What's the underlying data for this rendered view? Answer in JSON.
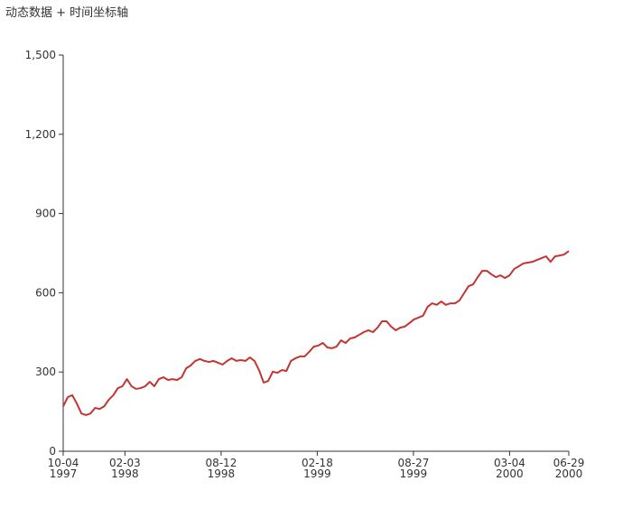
{
  "chart_data": {
    "type": "line",
    "title": "动态数据 + 时间坐标轴",
    "x": [
      "1997-10-04",
      "1997-10-13",
      "1997-10-22",
      "1997-10-31",
      "1997-11-09",
      "1997-11-18",
      "1997-11-27",
      "1997-12-06",
      "1997-12-15",
      "1997-12-24",
      "1998-01-02",
      "1998-01-11",
      "1998-01-20",
      "1998-01-29",
      "1998-02-07",
      "1998-02-16",
      "1998-02-25",
      "1998-03-06",
      "1998-03-15",
      "1998-03-24",
      "1998-04-02",
      "1998-04-11",
      "1998-04-20",
      "1998-04-29",
      "1998-05-08",
      "1998-05-17",
      "1998-05-26",
      "1998-06-04",
      "1998-06-13",
      "1998-06-22",
      "1998-07-01",
      "1998-07-10",
      "1998-07-19",
      "1998-07-28",
      "1998-08-06",
      "1998-08-15",
      "1998-08-24",
      "1998-09-02",
      "1998-09-11",
      "1998-09-20",
      "1998-09-29",
      "1998-10-08",
      "1998-10-17",
      "1998-10-26",
      "1998-11-04",
      "1998-11-13",
      "1998-11-22",
      "1998-12-01",
      "1998-12-10",
      "1998-12-19",
      "1998-12-28",
      "1999-01-06",
      "1999-01-15",
      "1999-01-24",
      "1999-02-02",
      "1999-02-11",
      "1999-02-20",
      "1999-03-01",
      "1999-03-10",
      "1999-03-19",
      "1999-03-28",
      "1999-04-06",
      "1999-04-15",
      "1999-04-24",
      "1999-05-03",
      "1999-05-12",
      "1999-05-21",
      "1999-05-30",
      "1999-06-08",
      "1999-06-17",
      "1999-06-26",
      "1999-07-05",
      "1999-07-14",
      "1999-07-23",
      "1999-08-01",
      "1999-08-10",
      "1999-08-19",
      "1999-08-28",
      "1999-09-06",
      "1999-09-15",
      "1999-09-24",
      "1999-10-03",
      "1999-10-12",
      "1999-10-21",
      "1999-10-30",
      "1999-11-08",
      "1999-11-17",
      "1999-11-26",
      "1999-12-05",
      "1999-12-14",
      "1999-12-23",
      "2000-01-01",
      "2000-01-10",
      "2000-01-19",
      "2000-01-28",
      "2000-02-06",
      "2000-02-15",
      "2000-02-24",
      "2000-03-04",
      "2000-03-13",
      "2000-03-22",
      "2000-03-31",
      "2000-04-09",
      "2000-04-18",
      "2000-04-27",
      "2000-05-06",
      "2000-05-15",
      "2000-05-24",
      "2000-06-02",
      "2000-06-11",
      "2000-06-20",
      "2000-06-29"
    ],
    "series": [
      {
        "color": "#c23531",
        "values": [
          170,
          205,
          212,
          180,
          143,
          137,
          143,
          164,
          160,
          170,
          195,
          212,
          239,
          246,
          273,
          246,
          236,
          239,
          246,
          263,
          246,
          273,
          280,
          270,
          273,
          270,
          280,
          314,
          325,
          342,
          349,
          342,
          338,
          342,
          335,
          328,
          342,
          352,
          342,
          345,
          342,
          355,
          342,
          307,
          260,
          266,
          301,
          297,
          307,
          304,
          342,
          352,
          359,
          359,
          376,
          396,
          400,
          410,
          393,
          390,
          396,
          420,
          410,
          427,
          431,
          441,
          451,
          458,
          451,
          468,
          492,
          492,
          472,
          458,
          468,
          472,
          485,
          499,
          506,
          513,
          547,
          560,
          554,
          567,
          554,
          560,
          560,
          571,
          598,
          625,
          632,
          659,
          683,
          683,
          670,
          659,
          666,
          656,
          666,
          690,
          700,
          711,
          714,
          717,
          724,
          731,
          738,
          717,
          738,
          741,
          745,
          758
        ]
      }
    ],
    "xlim": [
      "1997-10-04",
      "2000-06-29"
    ],
    "xticks": [
      {
        "value": "1997-10-04",
        "label": [
          "10-04",
          "1997"
        ]
      },
      {
        "value": "1998-02-03",
        "label": [
          "02-03",
          "1998"
        ]
      },
      {
        "value": "1998-08-12",
        "label": [
          "08-12",
          "1998"
        ]
      },
      {
        "value": "1999-02-18",
        "label": [
          "02-18",
          "1999"
        ]
      },
      {
        "value": "1999-08-27",
        "label": [
          "08-27",
          "1999"
        ]
      },
      {
        "value": "2000-03-04",
        "label": [
          "03-04",
          "2000"
        ]
      },
      {
        "value": "2000-06-29",
        "label": [
          "06-29",
          "2000"
        ]
      }
    ],
    "ylim": [
      0,
      1500
    ],
    "yticks": [
      0,
      300,
      600,
      900,
      {
        "value": 1200,
        "label": "1,200"
      },
      {
        "value": 1500,
        "label": "1,500"
      }
    ],
    "grid": false
  }
}
